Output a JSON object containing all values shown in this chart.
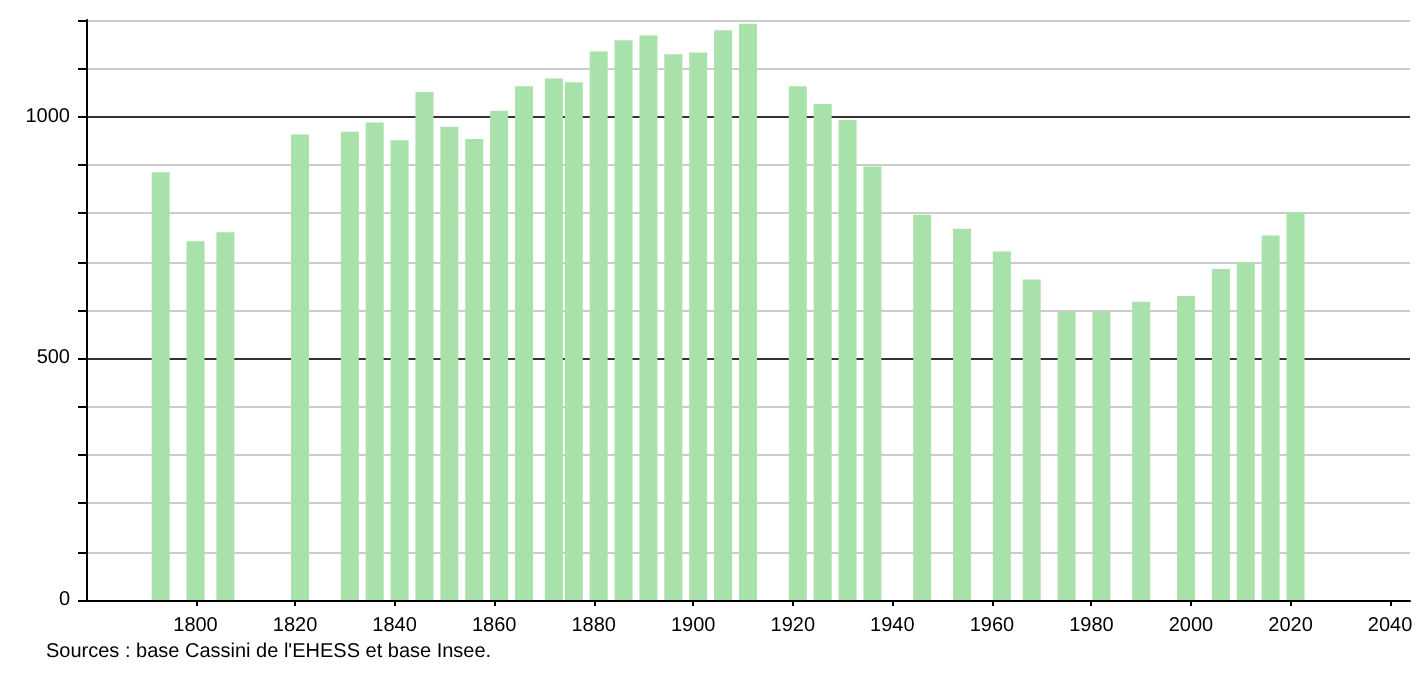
{
  "chart_data": {
    "type": "bar",
    "x": [
      1793,
      1800,
      1806,
      1821,
      1831,
      1836,
      1841,
      1846,
      1851,
      1856,
      1861,
      1866,
      1872,
      1876,
      1881,
      1886,
      1891,
      1896,
      1901,
      1906,
      1911,
      1921,
      1926,
      1931,
      1936,
      1946,
      1954,
      1962,
      1968,
      1975,
      1982,
      1990,
      1999,
      2006,
      2011,
      2016,
      2021
    ],
    "values": [
      885,
      742,
      761,
      963,
      969,
      988,
      951,
      1051,
      979,
      954,
      1012,
      1063,
      1079,
      1071,
      1135,
      1158,
      1168,
      1129,
      1133,
      1179,
      1192,
      1063,
      1026,
      993,
      897,
      797,
      768,
      721,
      663,
      597,
      597,
      617,
      629,
      685,
      699,
      754,
      803
    ],
    "color": "#a8e2aa",
    "xlim": [
      1778,
      2044
    ],
    "xticks": [
      1800,
      1820,
      1840,
      1860,
      1880,
      1900,
      1920,
      1940,
      1960,
      1980,
      2000,
      2020,
      2040
    ],
    "ylim": [
      0,
      1200
    ],
    "yticks": [
      0,
      {
        "value": 100,
        "label": null
      },
      {
        "value": 200,
        "label": null
      },
      {
        "value": 300,
        "label": null
      },
      {
        "value": 400,
        "label": null
      },
      500,
      {
        "value": 600,
        "label": null
      },
      {
        "value": 700,
        "label": null
      },
      {
        "value": 800,
        "label": null
      },
      {
        "value": 900,
        "label": null
      },
      1000,
      {
        "value": 1100,
        "label": null
      },
      {
        "value": 1200,
        "label": null
      }
    ],
    "grid": "y",
    "annotations": [
      "Sources : base Cassini de l'EHESS et base Insee."
    ]
  }
}
